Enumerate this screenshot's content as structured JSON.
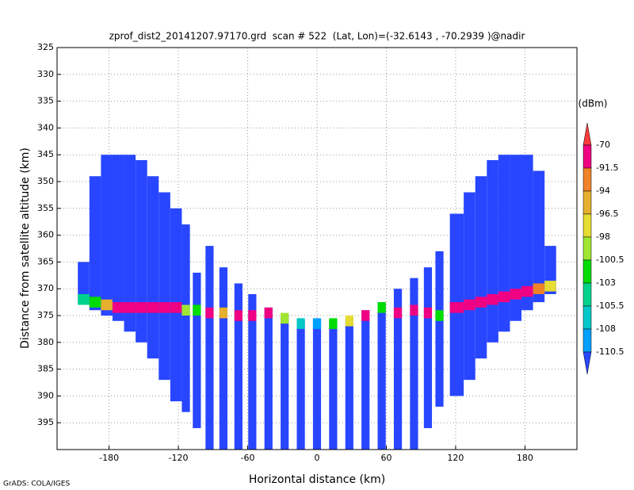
{
  "chart_data": {
    "type": "profile",
    "title": "zprof_dist2_20141207.97170.grd  scan # 522  (Lat, Lon)=(-32.6143 , -70.2939 )@nadir",
    "x_label": "Horizontal distance (km)",
    "y_label": "Distance from satellite altitude (km)",
    "footer": "GrADS: COLA/IGES",
    "xlim": [
      -225,
      225
    ],
    "xticks": [
      -180,
      -120,
      -60,
      0,
      60,
      120,
      180
    ],
    "ylim": [
      400,
      325
    ],
    "yticks": [
      325,
      330,
      335,
      340,
      345,
      350,
      355,
      360,
      365,
      370,
      375,
      380,
      385,
      390,
      395
    ],
    "grid": true,
    "colorbar": {
      "unit": "(dBm)",
      "levels": [
        -70,
        -91.5,
        -94,
        -96.5,
        -98,
        -100.5,
        -103,
        -105.5,
        -108,
        -110.5
      ],
      "colors": [
        "#fa3c3c",
        "#f00082",
        "#f08228",
        "#e6af2d",
        "#e6dc32",
        "#a0e632",
        "#00dc00",
        "#00d28c",
        "#00c8c8",
        "#00a0ff",
        "#2846ff"
      ]
    },
    "clear_dbm": -112,
    "columns": [
      {
        "x0": -207,
        "x1": -197,
        "top": 365,
        "bottom": 372.5,
        "surface": 372,
        "surface_dbm": -104
      },
      {
        "x0": -197,
        "x1": -187,
        "top": 349,
        "bottom": 374,
        "surface": 372.5,
        "surface_dbm": -101
      },
      {
        "x0": -187,
        "x1": -177,
        "top": 345,
        "bottom": 375,
        "surface": 373,
        "surface_dbm": -95
      },
      {
        "x0": -177,
        "x1": -167,
        "top": 345,
        "bottom": 376,
        "surface": 373.5,
        "surface_dbm": -88
      },
      {
        "x0": -167,
        "x1": -157,
        "top": 345,
        "bottom": 378,
        "surface": 373.5,
        "surface_dbm": -85
      },
      {
        "x0": -157,
        "x1": -147,
        "top": 346,
        "bottom": 380,
        "surface": 373.5,
        "surface_dbm": -85
      },
      {
        "x0": -147,
        "x1": -137,
        "top": 349,
        "bottom": 383,
        "surface": 373.5,
        "surface_dbm": -85
      },
      {
        "x0": -137,
        "x1": -127,
        "top": 352,
        "bottom": 387,
        "surface": 373.5,
        "surface_dbm": -85
      },
      {
        "x0": -127,
        "x1": -117,
        "top": 355,
        "bottom": 391,
        "surface": 373.5,
        "surface_dbm": -86
      },
      {
        "x0": -117,
        "x1": -110,
        "top": 358,
        "bottom": 393,
        "surface": 374,
        "surface_dbm": -99
      },
      {
        "x0": -107.5,
        "x1": -100.5,
        "top": 367,
        "bottom": 396,
        "surface": 374,
        "surface_dbm": -101
      },
      {
        "x0": -96.5,
        "x1": -89.5,
        "top": 362,
        "bottom": 400,
        "surface": 374.5,
        "surface_dbm": -85
      },
      {
        "x0": -84.5,
        "x1": -77.5,
        "top": 366,
        "bottom": 400,
        "surface": 374.5,
        "surface_dbm": -95
      },
      {
        "x0": -71.5,
        "x1": -64.5,
        "top": 369,
        "bottom": 400,
        "surface": 375,
        "surface_dbm": -86
      },
      {
        "x0": -59.5,
        "x1": -52.5,
        "top": 371,
        "bottom": 400,
        "surface": 375,
        "surface_dbm": -85
      },
      {
        "x0": -45.5,
        "x1": -38.5,
        "top": 373.5,
        "bottom": 400,
        "surface": 374.5,
        "surface_dbm": -85
      },
      {
        "x0": -31.5,
        "x1": -24.5,
        "top": 375,
        "bottom": 400,
        "surface": 375.5,
        "surface_dbm": -99
      },
      {
        "x0": -17.5,
        "x1": -10.5,
        "top": 376,
        "bottom": 400,
        "surface": 376.5,
        "surface_dbm": -107
      },
      {
        "x0": -3.5,
        "x1": 3.5,
        "top": 376,
        "bottom": 400,
        "surface": 376.5,
        "surface_dbm": -109
      },
      {
        "x0": 10.5,
        "x1": 17.5,
        "top": 376,
        "bottom": 400,
        "surface": 376.5,
        "surface_dbm": -102
      },
      {
        "x0": 24.5,
        "x1": 31.5,
        "top": 375.5,
        "bottom": 400,
        "surface": 376,
        "surface_dbm": -97
      },
      {
        "x0": 38.5,
        "x1": 45.5,
        "top": 374,
        "bottom": 400,
        "surface": 375,
        "surface_dbm": -85
      },
      {
        "x0": 52.5,
        "x1": 59.5,
        "top": 372.5,
        "bottom": 400,
        "surface": 373.5,
        "surface_dbm": -102
      },
      {
        "x0": 66.5,
        "x1": 73.5,
        "top": 370,
        "bottom": 400,
        "surface": 374.5,
        "surface_dbm": -85
      },
      {
        "x0": 80.5,
        "x1": 87.5,
        "top": 368,
        "bottom": 400,
        "surface": 374,
        "surface_dbm": -85
      },
      {
        "x0": 92.5,
        "x1": 99.5,
        "top": 366,
        "bottom": 396,
        "surface": 374.5,
        "surface_dbm": -86
      },
      {
        "x0": 102.5,
        "x1": 109.5,
        "top": 363,
        "bottom": 392,
        "surface": 375,
        "surface_dbm": -101
      },
      {
        "x0": 115,
        "x1": 127,
        "top": 356,
        "bottom": 390,
        "surface": 373.5,
        "surface_dbm": -85
      },
      {
        "x0": 127,
        "x1": 137,
        "top": 352,
        "bottom": 387,
        "surface": 373,
        "surface_dbm": -85
      },
      {
        "x0": 137,
        "x1": 147,
        "top": 349,
        "bottom": 383,
        "surface": 372.5,
        "surface_dbm": -85
      },
      {
        "x0": 147,
        "x1": 157,
        "top": 346,
        "bottom": 380,
        "surface": 372,
        "surface_dbm": -85
      },
      {
        "x0": 157,
        "x1": 167,
        "top": 345,
        "bottom": 378,
        "surface": 371.5,
        "surface_dbm": -85
      },
      {
        "x0": 167,
        "x1": 177,
        "top": 345,
        "bottom": 376,
        "surface": 371,
        "surface_dbm": -85
      },
      {
        "x0": 177,
        "x1": 187,
        "top": 345,
        "bottom": 374,
        "surface": 370.5,
        "surface_dbm": -86
      },
      {
        "x0": 187,
        "x1": 197,
        "top": 348,
        "bottom": 372.5,
        "surface": 370,
        "surface_dbm": -93
      },
      {
        "x0": 197,
        "x1": 207,
        "top": 362,
        "bottom": 371,
        "surface": 369.5,
        "surface_dbm": -97
      }
    ]
  }
}
